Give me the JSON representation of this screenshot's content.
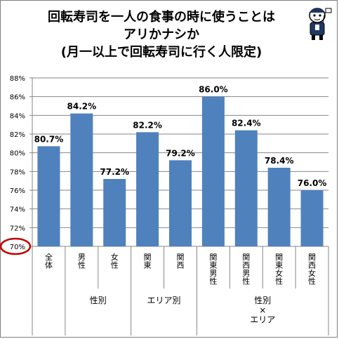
{
  "title_lines": [
    "回転寿司を一人の食事の時に使うことは",
    "アリかナシか",
    "(月一以上で回転寿司に行く人限定)"
  ],
  "chart_data": {
    "type": "bar",
    "title": "回転寿司を一人の食事の時に使うことは アリかナシか (月一以上で回転寿司に行く人限定)",
    "categories": [
      "全体",
      "男性",
      "女性",
      "関東",
      "関西",
      "関東男性",
      "関西男性",
      "関東女性",
      "関西女性"
    ],
    "values": [
      80.7,
      84.2,
      77.2,
      82.2,
      79.2,
      86.0,
      82.4,
      78.4,
      76.0
    ],
    "data_labels": [
      "80.7%",
      "84.2%",
      "77.2%",
      "82.2%",
      "79.2%",
      "86.0%",
      "82.4%",
      "78.4%",
      "76.0%"
    ],
    "ylim": [
      70,
      88
    ],
    "yticks": [
      "70%",
      "72%",
      "74%",
      "76%",
      "78%",
      "80%",
      "82%",
      "84%",
      "86%",
      "88%"
    ],
    "groups": [
      {
        "label": "",
        "span": [
          0,
          0
        ]
      },
      {
        "label": "性別",
        "span": [
          1,
          2
        ]
      },
      {
        "label": "エリア別",
        "span": [
          3,
          4
        ]
      },
      {
        "label": "性別\n×\nエリア",
        "span": [
          5,
          8
        ]
      }
    ],
    "bar_color": "#4f81bd",
    "highlight_tick": "70%",
    "highlight_color": "#c00000",
    "grid": true
  }
}
